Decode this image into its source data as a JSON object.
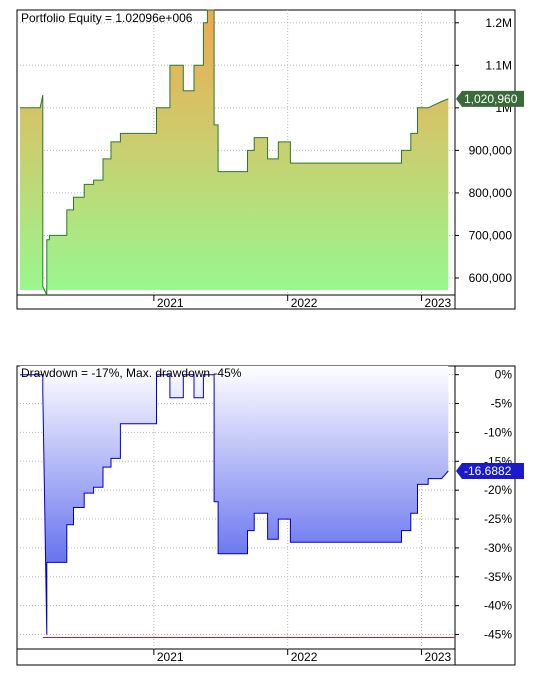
{
  "chart_data": [
    {
      "type": "area",
      "title": "Portfolio Equity = 1.02096e+006",
      "last_value_label": "1,020,960",
      "y_ticks": [
        {
          "value": 1200000,
          "label": "1.2M"
        },
        {
          "value": 1100000,
          "label": "1.1M"
        },
        {
          "value": 1000000,
          "label": "1M"
        },
        {
          "value": 900000,
          "label": "900,000"
        },
        {
          "value": 800000,
          "label": "800,000"
        },
        {
          "value": 700000,
          "label": "700,000"
        },
        {
          "value": 600000,
          "label": "600,000"
        }
      ],
      "ylim": [
        560000,
        1230000
      ],
      "xlim": [
        2020.0,
        2023.25
      ],
      "x_ticks": [
        {
          "value": 2021.0,
          "label": "2021"
        },
        {
          "value": 2022.0,
          "label": "2022"
        },
        {
          "value": 2023.0,
          "label": "2023"
        }
      ],
      "grid": true,
      "x": [
        2020.0,
        2020.15,
        2020.17,
        2020.17,
        2020.2,
        2020.2,
        2020.22,
        2020.22,
        2020.35,
        2020.35,
        2020.4,
        2020.4,
        2020.48,
        2020.48,
        2020.55,
        2020.55,
        2020.62,
        2020.62,
        2020.68,
        2020.68,
        2020.75,
        2020.75,
        2021.02,
        2021.02,
        2021.12,
        2021.12,
        2021.22,
        2021.22,
        2021.3,
        2021.3,
        2021.37,
        2021.37,
        2021.4,
        2021.4,
        2021.45,
        2021.45,
        2021.48,
        2021.48,
        2021.7,
        2021.7,
        2021.75,
        2021.75,
        2021.85,
        2021.85,
        2021.93,
        2021.93,
        2022.02,
        2022.02,
        2022.5,
        2022.5,
        2022.85,
        2022.85,
        2022.92,
        2022.92,
        2022.97,
        2022.97,
        2023.05,
        2023.05,
        2023.15,
        2023.2
      ],
      "y": [
        1000000,
        1000000,
        1030000,
        580000,
        560000,
        690000,
        690000,
        700000,
        700000,
        760000,
        760000,
        790000,
        790000,
        820000,
        820000,
        830000,
        830000,
        880000,
        880000,
        920000,
        920000,
        940000,
        940000,
        1000000,
        1000000,
        1100000,
        1100000,
        1040000,
        1040000,
        1100000,
        1100000,
        1200000,
        1200000,
        1230000,
        1230000,
        960000,
        960000,
        850000,
        850000,
        900000,
        900000,
        930000,
        930000,
        880000,
        880000,
        920000,
        920000,
        870000,
        870000,
        870000,
        870000,
        900000,
        900000,
        940000,
        940000,
        1000000,
        1000000,
        1000000,
        1015000,
        1020960
      ]
    },
    {
      "type": "area",
      "title": "Drawdown = -17%, Max. drawdown -45%",
      "last_value_label": "-16.6882",
      "y_ticks": [
        {
          "value": 0,
          "label": "0%"
        },
        {
          "value": -5,
          "label": "-5%"
        },
        {
          "value": -10,
          "label": "-10%"
        },
        {
          "value": -15,
          "label": "-15%"
        },
        {
          "value": -20,
          "label": "-20%"
        },
        {
          "value": -25,
          "label": "-25%"
        },
        {
          "value": -30,
          "label": "-30%"
        },
        {
          "value": -35,
          "label": "-35%"
        },
        {
          "value": -40,
          "label": "-40%"
        },
        {
          "value": -45,
          "label": "-45%"
        }
      ],
      "ylim": [
        -47.5,
        1.5
      ],
      "xlim": [
        2020.0,
        2023.25
      ],
      "x_ticks": [
        {
          "value": 2021.0,
          "label": "2021"
        },
        {
          "value": 2022.0,
          "label": "2022"
        },
        {
          "value": 2023.0,
          "label": "2023"
        }
      ],
      "grid": true,
      "max_drawdown": -45.5,
      "x": [
        2020.0,
        2020.17,
        2020.17,
        2020.2,
        2020.2,
        2020.35,
        2020.35,
        2020.4,
        2020.4,
        2020.48,
        2020.48,
        2020.55,
        2020.55,
        2020.62,
        2020.62,
        2020.68,
        2020.68,
        2020.75,
        2020.75,
        2021.02,
        2021.02,
        2021.12,
        2021.12,
        2021.22,
        2021.22,
        2021.3,
        2021.3,
        2021.37,
        2021.37,
        2021.45,
        2021.45,
        2021.48,
        2021.48,
        2021.7,
        2021.7,
        2021.75,
        2021.75,
        2021.85,
        2021.85,
        2021.93,
        2021.93,
        2022.02,
        2022.02,
        2022.5,
        2022.5,
        2022.85,
        2022.85,
        2022.92,
        2022.92,
        2022.97,
        2022.97,
        2023.05,
        2023.05,
        2023.15,
        2023.2
      ],
      "y": [
        0,
        0,
        -3,
        -45,
        -32.5,
        -32.5,
        -26,
        -26,
        -23,
        -23,
        -20.5,
        -20.5,
        -19.5,
        -19.5,
        -16,
        -16,
        -14.5,
        -14.5,
        -8.5,
        -8.5,
        0,
        0,
        -4,
        -4,
        0,
        0,
        -4,
        -4,
        0,
        0,
        -22,
        -22,
        -31,
        -31,
        -27,
        -27,
        -24,
        -24,
        -28.5,
        -28.5,
        -25,
        -25,
        -29,
        -29,
        -29,
        -29,
        -27,
        -27,
        -24,
        -24,
        -19,
        -19,
        -18,
        -18,
        -16.6882
      ]
    }
  ]
}
